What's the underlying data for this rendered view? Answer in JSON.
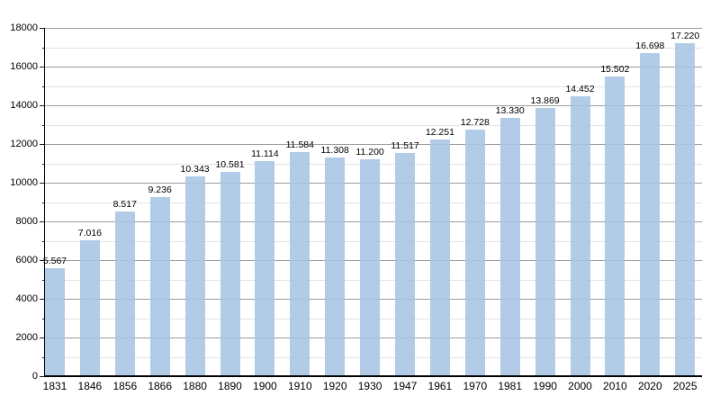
{
  "chart_data": {
    "type": "bar",
    "title": "",
    "xlabel": "",
    "ylabel": "",
    "categories": [
      "1831",
      "1846",
      "1856",
      "1866",
      "1880",
      "1890",
      "1900",
      "1910",
      "1920",
      "1930",
      "1947",
      "1961",
      "1970",
      "1981",
      "1990",
      "2000",
      "2010",
      "2020",
      "2025"
    ],
    "values": [
      5567,
      7016,
      8517,
      9236,
      10343,
      10581,
      11114,
      11584,
      11308,
      11200,
      11517,
      12251,
      12728,
      13330,
      13869,
      14452,
      15502,
      16698,
      17220
    ],
    "bar_value_labels": [
      "5.567",
      "7.016",
      "8.517",
      "9.236",
      "10.343",
      "10.581",
      "11.114",
      "11.584",
      "11.308",
      "11.200",
      "11.517",
      "12.251",
      "12.728",
      "13.330",
      "13.869",
      "14.452",
      "15.502",
      "16.698",
      "17.220"
    ],
    "ylim": [
      0,
      18000
    ],
    "y_tick_labels": [
      "0",
      "2000",
      "4000",
      "6000",
      "8000",
      "10000",
      "12000",
      "14000",
      "16000",
      "18000"
    ],
    "y_major_step": 2000,
    "y_minor_step": 1000,
    "grid": "horizontal major and minor lines, on",
    "legend": "none",
    "colors": {
      "bar_fill": "rgba(167,196,226,0.88)",
      "grid_major": "#9b9b9b",
      "grid_minor": "#e3e3e3",
      "axis": "#000000",
      "text": "#000000",
      "background": "#ffffff"
    }
  }
}
